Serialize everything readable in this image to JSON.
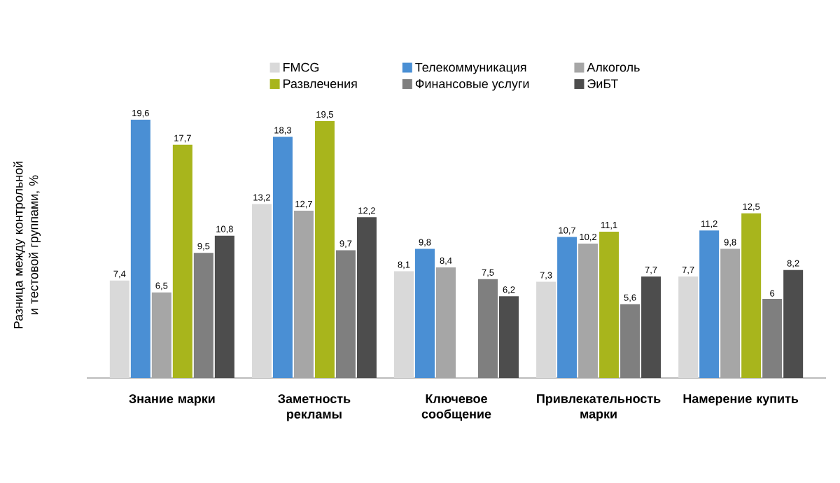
{
  "chart_data": {
    "type": "bar",
    "ylabel": "Разница между контрольной и тестовой группами, %",
    "categories": [
      "Знание марки",
      "Заметность рекламы",
      "Ключевое сообщение",
      "Привлекательность марки",
      "Намерение купить"
    ],
    "series": [
      {
        "name": "FMCG",
        "color": "#d9d9d9",
        "values": [
          7.4,
          13.2,
          8.1,
          7.3,
          7.7
        ],
        "value_labels": [
          "7,4",
          "13,2",
          "8,1",
          "7,3",
          "7,7"
        ]
      },
      {
        "name": "Телекоммуникация",
        "color": "#4a8fd4",
        "values": [
          19.6,
          18.3,
          9.8,
          10.7,
          11.2
        ],
        "value_labels": [
          "19,6",
          "18,3",
          "9,8",
          "10,7",
          "11,2"
        ]
      },
      {
        "name": "Алкоголь",
        "color": "#a6a6a6",
        "values": [
          6.5,
          12.7,
          8.4,
          10.2,
          9.8
        ],
        "value_labels": [
          "6,5",
          "12,7",
          "8,4",
          "10,2",
          "9,8"
        ]
      },
      {
        "name": "Развлечения",
        "color": "#a8b51c",
        "values": [
          17.7,
          19.5,
          null,
          11.1,
          12.5
        ],
        "value_labels": [
          "17,7",
          "19,5",
          null,
          "11,1",
          "12,5"
        ]
      },
      {
        "name": "Финансовые услуги",
        "color": "#7f7f7f",
        "values": [
          9.5,
          9.7,
          7.5,
          5.6,
          6
        ],
        "value_labels": [
          "9,5",
          "9,7",
          "7,5",
          "5,6",
          "6"
        ]
      },
      {
        "name": "ЭиБТ",
        "color": "#4d4d4d",
        "values": [
          10.8,
          12.2,
          6.2,
          7.7,
          8.2
        ],
        "value_labels": [
          "10,8",
          "12,2",
          "6,2",
          "7,7",
          "8,2"
        ]
      }
    ],
    "tick_labels": "x",
    "legend": "top"
  }
}
